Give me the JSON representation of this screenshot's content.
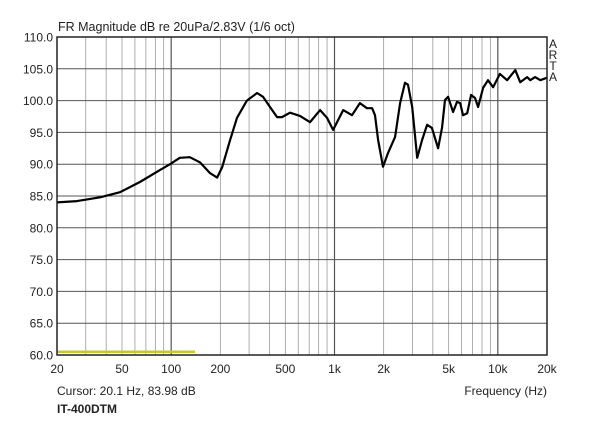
{
  "chart_data": {
    "type": "line",
    "title": "FR Magnitude dB re 20uPa/2.83V (1/6 oct)",
    "xlabel": "Frequency (Hz)",
    "ylabel": "",
    "x_scale": "log",
    "xlim": [
      20,
      20000
    ],
    "ylim": [
      60,
      110
    ],
    "grid": true,
    "x_ticks": [
      20,
      50,
      100,
      200,
      500,
      1000,
      2000,
      5000,
      10000,
      20000
    ],
    "x_tick_labels": [
      "20",
      "50",
      "100",
      "200",
      "500",
      "1k",
      "2k",
      "5k",
      "10k",
      "20k"
    ],
    "y_ticks": [
      60,
      65,
      70,
      75,
      80,
      85,
      90,
      95,
      100,
      105,
      110
    ],
    "y_tick_labels": [
      "60.0",
      "65.0",
      "70.0",
      "75.0",
      "80.0",
      "85.0",
      "90.0",
      "95.0",
      "100.0",
      "105.0",
      "110.0"
    ],
    "series": [
      {
        "color": "#000000",
        "x": [
          20,
          26.5,
          36.7,
          48.6,
          64.4,
          85.5,
          98.4,
          113,
          130,
          150,
          173,
          191,
          205,
          229,
          253,
          291,
          336,
          365,
          403,
          445,
          477,
          534,
          615,
          708,
          816,
          900,
          980,
          1130,
          1280,
          1430,
          1580,
          1700,
          1770,
          1850,
          1980,
          2130,
          2350,
          2520,
          2700,
          2820,
          2990,
          3210,
          3440,
          3690,
          3950,
          4310,
          4560,
          4750,
          4960,
          5320,
          5620,
          5880,
          6120,
          6490,
          6860,
          7260,
          7570,
          8130,
          8710,
          9350,
          10300,
          11400,
          12800,
          13700,
          15100,
          15800,
          16900,
          18200,
          20000
        ],
        "y": [
          84.0,
          84.2,
          84.8,
          85.6,
          87.2,
          89.1,
          90.0,
          91.0,
          91.1,
          90.3,
          88.6,
          87.9,
          89.5,
          93.7,
          97.3,
          100.0,
          101.2,
          100.6,
          99.0,
          97.4,
          97.4,
          98.1,
          97.6,
          96.6,
          98.5,
          97.3,
          95.4,
          98.5,
          97.7,
          99.6,
          98.8,
          98.8,
          97.7,
          93.8,
          89.6,
          91.8,
          94.3,
          99.6,
          102.8,
          102.5,
          99.0,
          91.0,
          93.8,
          96.2,
          95.7,
          92.5,
          95.8,
          100.1,
          100.6,
          98.2,
          99.8,
          99.6,
          97.7,
          98.0,
          100.9,
          100.4,
          99.0,
          102.0,
          103.2,
          102.1,
          104.2,
          103.2,
          104.8,
          102.9,
          103.7,
          103.2,
          103.7,
          103.2,
          103.6
        ]
      },
      {
        "color": "#c8c828",
        "x": [
          20,
          140
        ],
        "y": [
          60.5,
          60.5
        ]
      }
    ]
  },
  "cursor_text": "Cursor: 20.1 Hz, 83.98 dB",
  "device_name": "IT-400DTM",
  "watermark": "ARTA",
  "colors": {
    "curve": "#000000",
    "reference_line": "#c8c828",
    "grid": "#9a9a9a",
    "grid_major": "#555555"
  }
}
